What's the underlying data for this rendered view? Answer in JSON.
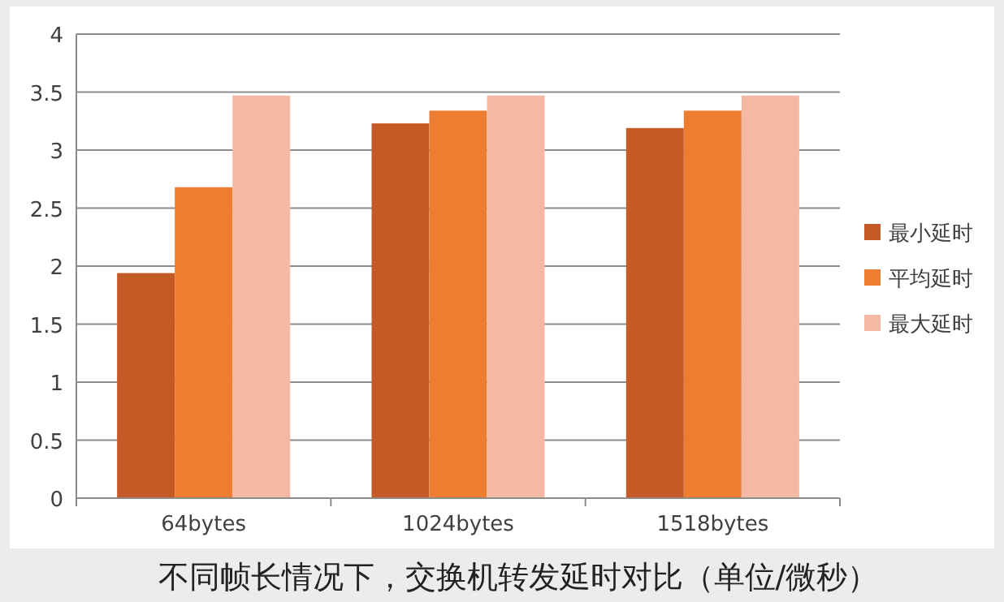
{
  "chart_data": {
    "type": "bar",
    "categories": [
      "64bytes",
      "1024bytes",
      "1518bytes"
    ],
    "series": [
      {
        "name": "最小延时",
        "color": "#c55a27",
        "values": [
          1.94,
          3.23,
          3.19
        ]
      },
      {
        "name": "平均延时",
        "color": "#ed7d31",
        "values": [
          2.68,
          3.34,
          3.34
        ]
      },
      {
        "name": "最大延时",
        "color": "#f4b9a5",
        "values": [
          3.47,
          3.47,
          3.47
        ]
      }
    ],
    "ylim": [
      0,
      4
    ],
    "yticks": [
      0,
      0.5,
      1,
      1.5,
      2,
      2.5,
      3,
      3.5,
      4
    ],
    "grid": "y",
    "legend": "right",
    "annotations": [
      "不同帧长情况下，交换机转发延时对比（单位/微秒）"
    ]
  }
}
